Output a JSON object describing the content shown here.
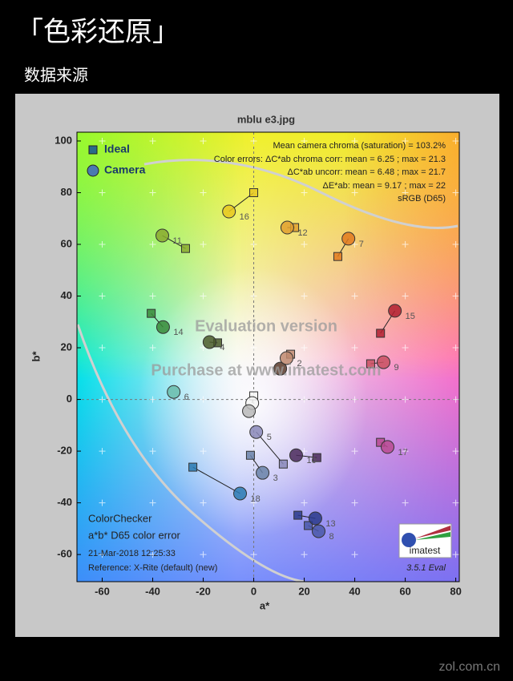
{
  "header": {
    "title": "「色彩还原」",
    "subtitle": "数据来源"
  },
  "footer": "zol.com.cn",
  "chart_data": {
    "type": "scatter",
    "title": "mblu e3.jpg",
    "x_label": "a*",
    "y_label": "b*",
    "xlim": [
      -70,
      81.4
    ],
    "ylim": [
      -70.5,
      103.4
    ],
    "xticks": [
      -60,
      -40,
      -20,
      0,
      20,
      40,
      60,
      80
    ],
    "yticks": [
      -60,
      -40,
      -20,
      0,
      20,
      40,
      60,
      80,
      100
    ],
    "grid": true,
    "legend": "upper left",
    "point_labels": [
      null,
      "2",
      "3",
      "4",
      "5",
      "6",
      "7",
      "8",
      "9",
      "10",
      "11",
      "12",
      "13",
      "14",
      "15",
      "16",
      "17",
      "18",
      null,
      null
    ],
    "point_colors": [
      "#5a3a2a",
      "#c08a70",
      "#6a82a8",
      "#4a5a2a",
      "#8a88b8",
      "#6abcaa",
      "#e07a20",
      "#4a58a8",
      "#c85060",
      "#4a2a5a",
      "#8aaa30",
      "#e0a030",
      "#2a3a8a",
      "#3a8a3a",
      "#b02030",
      "#e8c820",
      "#b84a90",
      "#2a7ab0",
      "#f4f4f4",
      "#b8b8b8"
    ],
    "series": [
      {
        "name": "Ideal",
        "marker": "square",
        "color": "#2a6a8a",
        "x": [
          null,
          14.6,
          -1.3,
          -14.3,
          11.7,
          null,
          33.3,
          21.6,
          46.3,
          25,
          -27,
          16.2,
          17.5,
          -40.6,
          50.2,
          0,
          50.2,
          -24.1,
          0,
          null
        ],
        "values": [
          null,
          17.5,
          -21.6,
          21.9,
          -25,
          null,
          55.3,
          -48.8,
          13.8,
          -22.5,
          58.4,
          66.5,
          -44.8,
          33.3,
          25.6,
          80,
          -16.6,
          -26.2,
          1.4,
          null
        ]
      },
      {
        "name": "Camera",
        "marker": "circle",
        "color": "#4a7ab0",
        "x": [
          10.5,
          13,
          3.5,
          -17.5,
          1,
          -31.7,
          37.5,
          25.7,
          51.4,
          16.8,
          -36.2,
          13.3,
          24.4,
          -35.9,
          55.9,
          -9.8,
          53,
          -5.4,
          -0.6,
          -1.9
        ],
        "values": [
          11.9,
          16,
          -28.4,
          22.2,
          -12.6,
          2.9,
          62.2,
          -51,
          14.4,
          -21.6,
          63.4,
          66.5,
          -46,
          28,
          34.3,
          72.7,
          -18.4,
          -36.4,
          -1.4,
          -4.5
        ]
      }
    ],
    "annotations": [
      "Mean camera chroma (saturation) = 103.2%",
      "Color errors: ΔC*ab chroma corr:  mean = 6.25 ;  max = 21.3",
      "ΔC*ab uncorr:  mean = 6.48 ;  max = 21.7",
      "ΔE*ab:  mean = 9.17 ;  max = 22",
      "sRGB (D65)"
    ],
    "footnotes": [
      "ColorChecker",
      "a*b* D65 color error",
      "21-Mar-2018 12:25:33",
      "Reference: X-Rite (default) (new)"
    ],
    "version": "3.5.1   Eval",
    "watermarks": [
      "Evaluation version",
      "Purchase at www.imatest.com"
    ],
    "logo": "imatest"
  }
}
